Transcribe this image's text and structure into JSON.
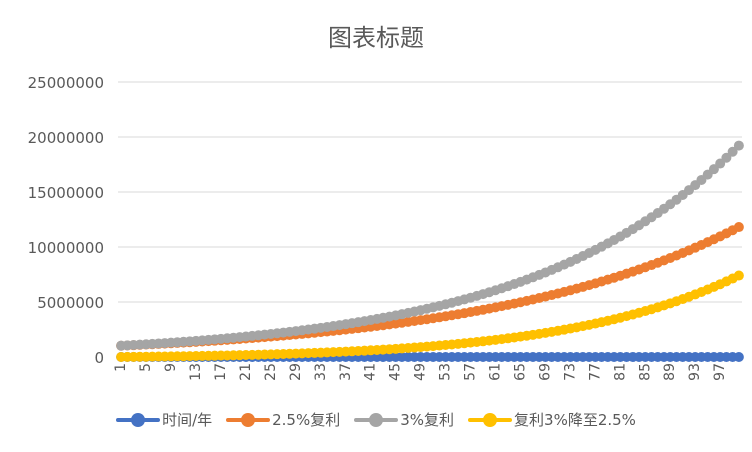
{
  "chart_data": {
    "type": "line",
    "title": "图表标题",
    "xlabel": "",
    "ylabel": "",
    "ylim": [
      0,
      25000000
    ],
    "yticks": [
      0,
      5000000,
      10000000,
      15000000,
      20000000,
      25000000
    ],
    "grid": true,
    "legend_position": "bottom",
    "x": [
      1,
      2,
      3,
      4,
      5,
      6,
      7,
      8,
      9,
      10,
      11,
      12,
      13,
      14,
      15,
      16,
      17,
      18,
      19,
      20,
      21,
      22,
      23,
      24,
      25,
      26,
      27,
      28,
      29,
      30,
      31,
      32,
      33,
      34,
      35,
      36,
      37,
      38,
      39,
      40,
      41,
      42,
      43,
      44,
      45,
      46,
      47,
      48,
      49,
      50,
      51,
      52,
      53,
      54,
      55,
      56,
      57,
      58,
      59,
      60,
      61,
      62,
      63,
      64,
      65,
      66,
      67,
      68,
      69,
      70,
      71,
      72,
      73,
      74,
      75,
      76,
      77,
      78,
      79,
      80,
      81,
      82,
      83,
      84,
      85,
      86,
      87,
      88,
      89,
      90,
      91,
      92,
      93,
      94,
      95,
      96,
      97,
      98,
      99,
      100
    ],
    "x_tick_labels": [
      "1",
      "5",
      "9",
      "13",
      "17",
      "21",
      "25",
      "29",
      "33",
      "37",
      "41",
      "45",
      "49",
      "53",
      "57",
      "61",
      "65",
      "69",
      "73",
      "77",
      "81",
      "85",
      "89",
      "93",
      "97"
    ],
    "series": [
      {
        "name": "时间/年",
        "color": "#4472C4",
        "values": [
          1,
          2,
          3,
          4,
          5,
          6,
          7,
          8,
          9,
          10,
          11,
          12,
          13,
          14,
          15,
          16,
          17,
          18,
          19,
          20,
          21,
          22,
          23,
          24,
          25,
          26,
          27,
          28,
          29,
          30,
          31,
          32,
          33,
          34,
          35,
          36,
          37,
          38,
          39,
          40,
          41,
          42,
          43,
          44,
          45,
          46,
          47,
          48,
          49,
          50,
          51,
          52,
          53,
          54,
          55,
          56,
          57,
          58,
          59,
          60,
          61,
          62,
          63,
          64,
          65,
          66,
          67,
          68,
          69,
          70,
          71,
          72,
          73,
          74,
          75,
          76,
          77,
          78,
          79,
          80,
          81,
          82,
          83,
          84,
          85,
          86,
          87,
          88,
          89,
          90,
          91,
          92,
          93,
          94,
          95,
          96,
          97,
          98,
          99,
          100
        ]
      },
      {
        "name": "2.5%复利",
        "color": "#ED7D31",
        "values": [
          1025000,
          1051000,
          1077000,
          1104000,
          1131000,
          1160000,
          1189000,
          1218000,
          1249000,
          1280000,
          1312000,
          1345000,
          1379000,
          1413000,
          1448000,
          1485000,
          1522000,
          1560000,
          1599000,
          1639000,
          1680000,
          1722000,
          1765000,
          1809000,
          1854000,
          1900000,
          1948000,
          1997000,
          2046000,
          2098000,
          2150000,
          2204000,
          2259000,
          2315000,
          2373000,
          2433000,
          2493000,
          2556000,
          2620000,
          2685000,
          2752000,
          2821000,
          2892000,
          2964000,
          3038000,
          3114000,
          3192000,
          3271000,
          3353000,
          3437000,
          3523000,
          3611000,
          3701000,
          3794000,
          3889000,
          3986000,
          4086000,
          4188000,
          4292000,
          4400000,
          4510000,
          4623000,
          4738000,
          4857000,
          4978000,
          5102000,
          5230000,
          5361000,
          5495000,
          5632000,
          5773000,
          5917000,
          6065000,
          6217000,
          6372000,
          6532000,
          6695000,
          6862000,
          7034000,
          7210000,
          7390000,
          7575000,
          7764000,
          7958000,
          8157000,
          8361000,
          8570000,
          8784000,
          9004000,
          9229000,
          9460000,
          9696000,
          9938000,
          10187000,
          10442000,
          10703000,
          10970000,
          11244000,
          11526000,
          11814000
        ]
      },
      {
        "name": "3%复利",
        "color": "#A5A5A5",
        "values": [
          1030000,
          1061000,
          1093000,
          1126000,
          1159000,
          1194000,
          1230000,
          1267000,
          1305000,
          1344000,
          1384000,
          1426000,
          1469000,
          1513000,
          1558000,
          1605000,
          1653000,
          1702000,
          1754000,
          1806000,
          1860000,
          1916000,
          1974000,
          2033000,
          2094000,
          2157000,
          2221000,
          2288000,
          2357000,
          2427000,
          2500000,
          2575000,
          2652000,
          2732000,
          2814000,
          2898000,
          2985000,
          3075000,
          3167000,
          3262000,
          3360000,
          3461000,
          3565000,
          3671000,
          3782000,
          3895000,
          4012000,
          4132000,
          4256000,
          4384000,
          4515000,
          4651000,
          4790000,
          4934000,
          5082000,
          5235000,
          5392000,
          5553000,
          5720000,
          5892000,
          6068000,
          6250000,
          6438000,
          6631000,
          6830000,
          7035000,
          7246000,
          7463000,
          7687000,
          7918000,
          8155000,
          8400000,
          8652000,
          8912000,
          9179000,
          9454000,
          9738000,
          10030000,
          10331000,
          10641000,
          10960000,
          11289000,
          11628000,
          11976000,
          12336000,
          12706000,
          13087000,
          13480000,
          13884000,
          14300000,
          14729000,
          15171000,
          15627000,
          16095000,
          16578000,
          17076000,
          17588000,
          18115000,
          18659000,
          19219000
        ]
      },
      {
        "name": "复利3%降至2.5%",
        "color": "#FFC000",
        "values": [
          5000,
          10000,
          16000,
          22000,
          28000,
          34000,
          41000,
          49000,
          56000,
          64000,
          72000,
          81000,
          90000,
          100000,
          110000,
          120000,
          131000,
          142000,
          155000,
          167000,
          180000,
          194000,
          209000,
          224000,
          240000,
          257000,
          273000,
          291000,
          311000,
          329000,
          350000,
          371000,
          393000,
          417000,
          441000,
          465000,
          492000,
          519000,
          547000,
          577000,
          608000,
          640000,
          673000,
          707000,
          744000,
          781000,
          820000,
          861000,
          903000,
          947000,
          992000,
          1040000,
          1089000,
          1140000,
          1193000,
          1249000,
          1306000,
          1365000,
          1428000,
          1492000,
          1558000,
          1627000,
          1700000,
          1774000,
          1852000,
          1933000,
          2016000,
          2102000,
          2192000,
          2286000,
          2382000,
          2483000,
          2587000,
          2695000,
          2807000,
          2922000,
          3043000,
          3168000,
          3297000,
          3431000,
          3570000,
          3714000,
          3864000,
          4018000,
          4179000,
          4345000,
          4517000,
          4696000,
          4880000,
          5071000,
          5269000,
          5475000,
          5689000,
          5908000,
          6136000,
          6373000,
          6618000,
          6871000,
          7133000,
          7405000
        ]
      }
    ]
  }
}
